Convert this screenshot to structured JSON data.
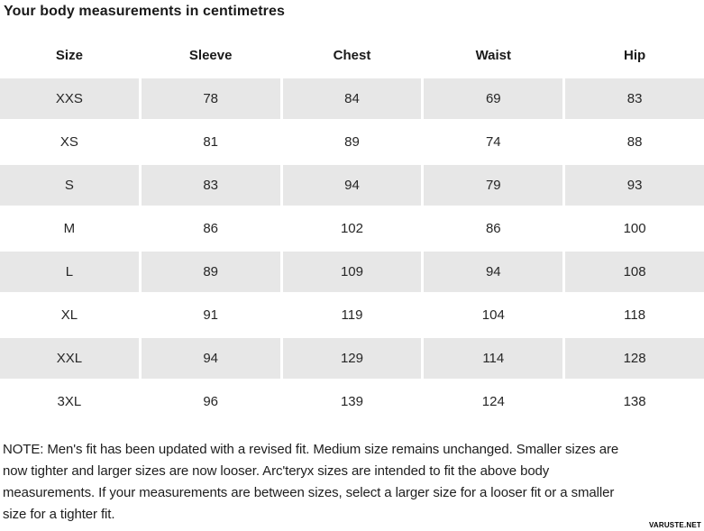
{
  "title": "Your body measurements in centimetres",
  "colors": {
    "background": "#ffffff",
    "row_stripe": "#e7e7e7",
    "text": "#1d1d1d"
  },
  "table": {
    "headers": [
      "Size",
      "Sleeve",
      "Chest",
      "Waist",
      "Hip"
    ],
    "rows": [
      {
        "cells": [
          "XXS",
          "78",
          "84",
          "69",
          "83"
        ]
      },
      {
        "cells": [
          "XS",
          "81",
          "89",
          "74",
          "88"
        ]
      },
      {
        "cells": [
          "S",
          "83",
          "94",
          "79",
          "93"
        ]
      },
      {
        "cells": [
          "M",
          "86",
          "102",
          "86",
          "100"
        ]
      },
      {
        "cells": [
          "L",
          "89",
          "109",
          "94",
          "108"
        ]
      },
      {
        "cells": [
          "XL",
          "91",
          "119",
          "104",
          "118"
        ]
      },
      {
        "cells": [
          "XXL",
          "94",
          "129",
          "114",
          "128"
        ]
      },
      {
        "cells": [
          "3XL",
          "96",
          "139",
          "124",
          "138"
        ]
      }
    ]
  },
  "note": {
    "lines": [
      "NOTE: Men's fit has been updated with a revised fit. Medium size remains unchanged. Smaller sizes are",
      "now tighter and larger sizes are now looser. Arc'teryx sizes are intended to fit the above body",
      "measurements. If your measurements are between sizes, select a larger size for a looser fit or a smaller",
      "size for a tighter fit."
    ]
  },
  "watermark": "VARUSTE.NET"
}
